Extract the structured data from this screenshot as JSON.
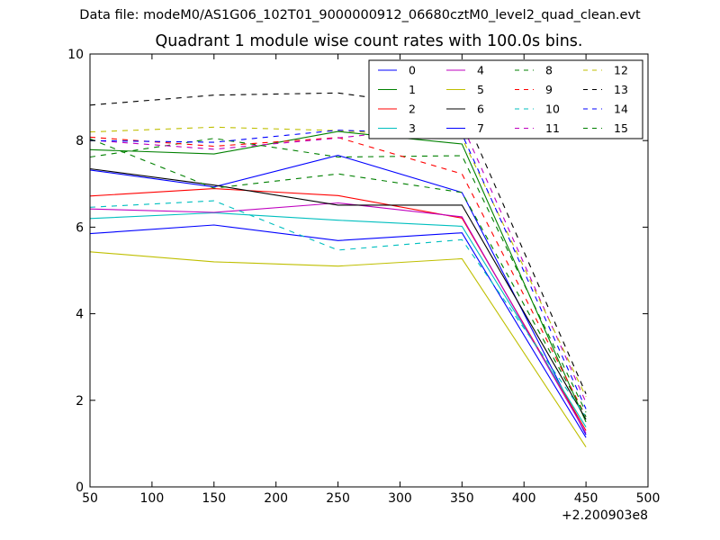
{
  "suptitle": "Data file: modeM0/AS1G06_102T01_9000000912_06680cztM0_level2_quad_clean.evt",
  "chart_data": {
    "type": "line",
    "title": "Quadrant 1 module wise count rates with 100.0s bins.",
    "xlabel": "",
    "ylabel": "",
    "xlim": [
      50,
      500
    ],
    "ylim": [
      0,
      10
    ],
    "x_offset_label": "+2.200903e8",
    "x_ticks": [
      "50",
      "100",
      "150",
      "200",
      "250",
      "300",
      "350",
      "400",
      "450",
      "500"
    ],
    "y_ticks": [
      "0",
      "2",
      "4",
      "6",
      "8",
      "10"
    ],
    "legend_location": "upper right",
    "legend_columns": 4,
    "x": [
      50,
      150,
      250,
      350,
      450
    ],
    "series": [
      {
        "name": "0",
        "color": "#0000ff",
        "dash": "solid",
        "values": [
          7.32,
          6.93,
          7.66,
          6.8,
          1.2
        ]
      },
      {
        "name": "1",
        "color": "#008000",
        "dash": "solid",
        "values": [
          7.79,
          7.69,
          8.21,
          7.92,
          1.5
        ]
      },
      {
        "name": "2",
        "color": "#ff0000",
        "dash": "solid",
        "values": [
          6.72,
          6.89,
          6.73,
          6.21,
          1.3
        ]
      },
      {
        "name": "3",
        "color": "#00bfbf",
        "dash": "solid",
        "values": [
          6.2,
          6.33,
          6.16,
          6.02,
          1.38
        ]
      },
      {
        "name": "4",
        "color": "#bf00bf",
        "dash": "solid",
        "values": [
          6.42,
          6.34,
          6.56,
          6.24,
          1.24
        ]
      },
      {
        "name": "5",
        "color": "#bfbf00",
        "dash": "solid",
        "values": [
          5.43,
          5.2,
          5.1,
          5.27,
          0.92
        ]
      },
      {
        "name": "6",
        "color": "#000000",
        "dash": "solid",
        "values": [
          7.35,
          6.97,
          6.51,
          6.51,
          1.56
        ]
      },
      {
        "name": "7",
        "color": "#0000ff",
        "dash": "solid",
        "values": [
          5.85,
          6.05,
          5.69,
          5.87,
          1.14
        ]
      },
      {
        "name": "8",
        "color": "#008000",
        "dash": "dashed",
        "values": [
          7.62,
          8.05,
          7.62,
          7.65,
          1.72
        ]
      },
      {
        "name": "9",
        "color": "#ff0000",
        "dash": "dashed",
        "values": [
          8.08,
          7.87,
          8.07,
          7.23,
          1.62
        ]
      },
      {
        "name": "10",
        "color": "#00bfbf",
        "dash": "dashed",
        "values": [
          6.46,
          6.61,
          5.47,
          5.71,
          1.62
        ]
      },
      {
        "name": "11",
        "color": "#bf00bf",
        "dash": "dashed",
        "values": [
          8.01,
          7.8,
          8.06,
          8.37,
          1.95
        ]
      },
      {
        "name": "12",
        "color": "#bfbf00",
        "dash": "dashed",
        "values": [
          8.2,
          8.31,
          8.23,
          8.06,
          2.08
        ]
      },
      {
        "name": "13",
        "color": "#000000",
        "dash": "dashed",
        "values": [
          8.82,
          9.05,
          9.1,
          8.71,
          2.15
        ]
      },
      {
        "name": "14",
        "color": "#0000ff",
        "dash": "dashed",
        "values": [
          8.0,
          7.96,
          8.24,
          8.15,
          1.8
        ]
      },
      {
        "name": "15",
        "color": "#008000",
        "dash": "dashed",
        "values": [
          8.04,
          6.9,
          7.23,
          6.8,
          1.62
        ]
      }
    ]
  }
}
